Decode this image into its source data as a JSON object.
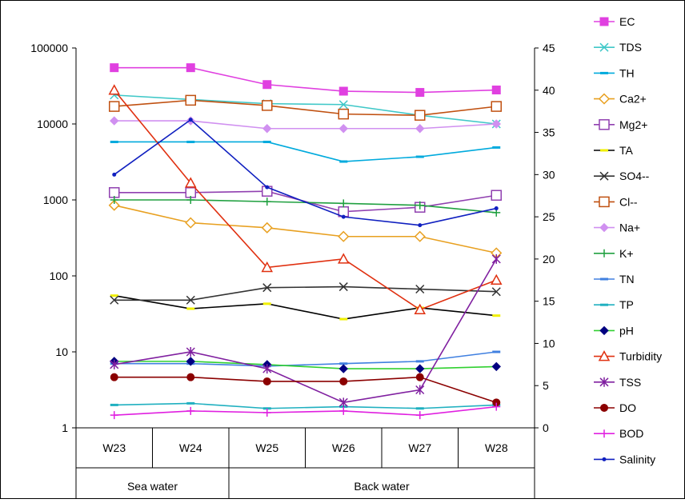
{
  "chart_data": {
    "type": "line",
    "title": "",
    "xlabel": "",
    "ylabel": "",
    "left_axis": {
      "scale": "log",
      "ylim": [
        1,
        100000
      ],
      "ticks": [
        "1",
        "10",
        "100",
        "1000",
        "10000",
        "100000"
      ]
    },
    "right_axis": {
      "scale": "linear",
      "ylim": [
        0,
        45
      ],
      "ticks": [
        "0",
        "5",
        "10",
        "15",
        "20",
        "25",
        "30",
        "35",
        "40",
        "45"
      ]
    },
    "categories": [
      "W23",
      "W24",
      "W25",
      "W26",
      "W27",
      "W28"
    ],
    "groups": [
      {
        "label": "Sea water",
        "span": 2
      },
      {
        "label": "Back water",
        "span": 4
      }
    ],
    "grid": false,
    "legend_position": "right",
    "series": [
      {
        "name": "EC",
        "axis": "left",
        "color": "#e040e0",
        "marker": "square",
        "values": [
          55000,
          55000,
          33000,
          27000,
          26000,
          28000
        ]
      },
      {
        "name": "TDS",
        "axis": "left",
        "color": "#40c8c8",
        "marker": "x",
        "values": [
          24000,
          21000,
          18500,
          18000,
          13000,
          10000
        ]
      },
      {
        "name": "TH",
        "axis": "left",
        "color": "#00aadd",
        "marker": "bar",
        "values": [
          5800,
          5800,
          5800,
          3200,
          3700,
          4900
        ]
      },
      {
        "name": "Ca2+",
        "axis": "left",
        "color": "#e8a020",
        "marker": "diamond-open",
        "values": [
          850,
          500,
          430,
          330,
          330,
          200
        ]
      },
      {
        "name": "Mg2+",
        "axis": "left",
        "color": "#9040b0",
        "marker": "square-open",
        "values": [
          1250,
          1250,
          1300,
          700,
          800,
          1150
        ]
      },
      {
        "name": "TA",
        "axis": "left",
        "color": "#000000",
        "marker": "bar-yellow",
        "values": [
          55,
          37,
          43,
          27,
          38,
          30
        ]
      },
      {
        "name": "SO4--",
        "axis": "left",
        "color": "#333333",
        "marker": "x",
        "values": [
          48,
          48,
          70,
          72,
          67,
          62
        ]
      },
      {
        "name": "Cl--",
        "axis": "left",
        "color": "#c05010",
        "marker": "square-open",
        "values": [
          17000,
          20500,
          17500,
          13500,
          13000,
          17000
        ]
      },
      {
        "name": "Na+",
        "axis": "left",
        "color": "#d090f0",
        "marker": "diamond",
        "values": [
          11000,
          11000,
          8700,
          8700,
          8700,
          10000
        ]
      },
      {
        "name": "K+",
        "axis": "left",
        "color": "#20a040",
        "marker": "plus",
        "values": [
          1000,
          1000,
          950,
          900,
          850,
          680
        ]
      },
      {
        "name": "TN",
        "axis": "left",
        "color": "#4080e0",
        "marker": "bar",
        "values": [
          7,
          7,
          6.5,
          7,
          7.5,
          10
        ]
      },
      {
        "name": "TP",
        "axis": "left",
        "color": "#20b0c0",
        "marker": "bar",
        "values": [
          2,
          2.1,
          1.8,
          1.9,
          1.8,
          2
        ]
      },
      {
        "name": "pH",
        "axis": "left",
        "color": "#30d030",
        "marker": "diamond-navy",
        "values": [
          7.5,
          7.5,
          6.8,
          6,
          6,
          6.4
        ]
      },
      {
        "name": "Turbidity",
        "axis": "right",
        "color": "#e03010",
        "marker": "triangle-open",
        "values": [
          40,
          29,
          19,
          20,
          14,
          17.5
        ]
      },
      {
        "name": "TSS",
        "axis": "right",
        "color": "#8020a0",
        "marker": "star",
        "values": [
          7.5,
          9,
          7,
          3,
          4.5,
          20
        ]
      },
      {
        "name": "DO",
        "axis": "right",
        "color": "#8b0000",
        "marker": "circle",
        "values": [
          6,
          6,
          5.5,
          5.5,
          6,
          3
        ]
      },
      {
        "name": "BOD",
        "axis": "right",
        "color": "#e020e0",
        "marker": "plus",
        "values": [
          1.5,
          2,
          1.8,
          2,
          1.5,
          2.5
        ]
      },
      {
        "name": "Salinity",
        "axis": "right",
        "color": "#1020c0",
        "marker": "dot",
        "values": [
          30,
          36.5,
          28.5,
          25,
          24,
          26
        ]
      }
    ]
  }
}
